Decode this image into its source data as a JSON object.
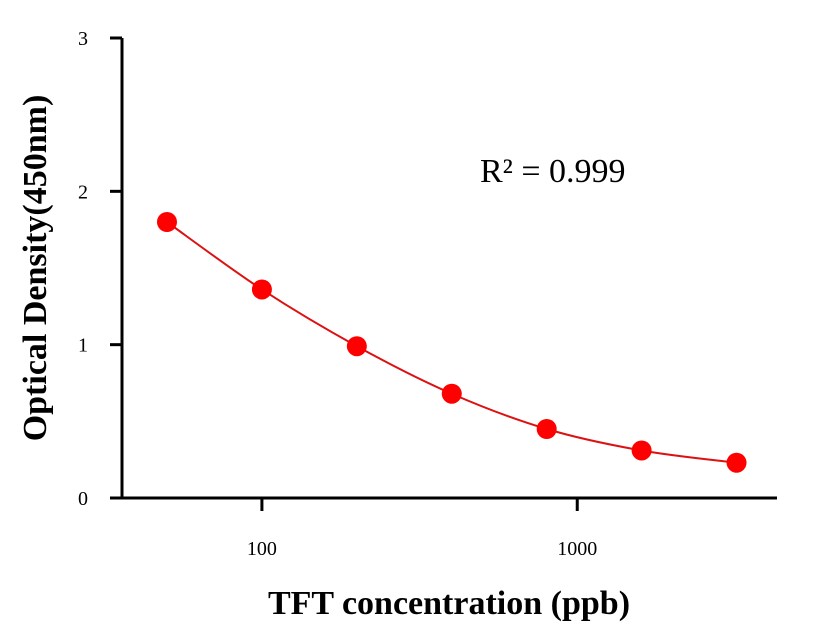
{
  "chart_data": {
    "type": "scatter",
    "x_scale": "log",
    "xlabel": "TFT concentration (ppb)",
    "ylabel": "Optical Density(450nm)",
    "xlim": [
      36,
      4300
    ],
    "ylim": [
      0,
      3
    ],
    "x_ticks": [
      100,
      1000
    ],
    "x_tick_labels": [
      "100",
      "1000"
    ],
    "y_ticks": [
      0,
      1,
      2,
      3
    ],
    "y_tick_labels": [
      "0",
      "1",
      "2",
      "3"
    ],
    "grid": false,
    "legend": "none",
    "series": [
      {
        "x": [
          50,
          100,
          200,
          400,
          800,
          1600,
          3200
        ],
        "y": [
          1.8,
          1.36,
          0.99,
          0.68,
          0.45,
          0.31,
          0.23
        ],
        "color": "#ff0000",
        "line_color": "#dd1111",
        "fit": "smooth curve"
      }
    ],
    "annotations": [
      {
        "text": "R² = 0.999"
      }
    ]
  }
}
